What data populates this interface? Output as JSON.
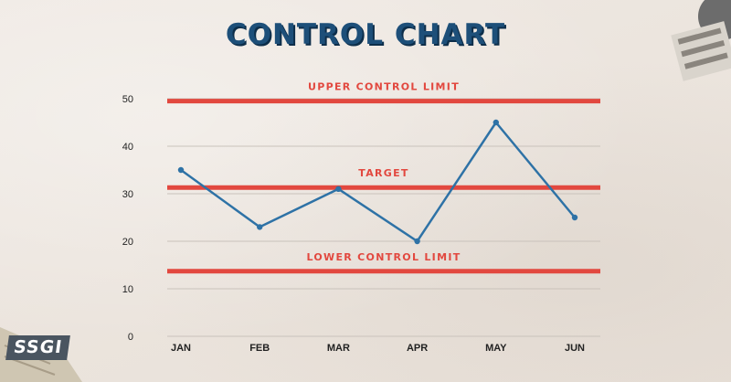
{
  "title": "CONTROL CHART",
  "logo": "SSGI",
  "colors": {
    "title": "#1d4f79",
    "line": "#2e72a6",
    "limit": "#e2483f",
    "grid": "#c9c2bb",
    "background": "#ece5de"
  },
  "chart_data": {
    "type": "line",
    "categories": [
      "JAN",
      "FEB",
      "MAR",
      "APR",
      "MAY",
      "JUN"
    ],
    "series": [
      {
        "values": [
          35,
          23,
          31,
          20,
          45,
          25
        ]
      }
    ],
    "reference_lines": [
      {
        "label": "UPPER CONTROL LIMIT",
        "value": 49.5
      },
      {
        "label": "TARGET",
        "value": 31.3
      },
      {
        "label": "LOWER CONTROL LIMIT",
        "value": 13.7
      }
    ],
    "yticks": [
      0,
      10,
      20,
      30,
      40,
      50
    ],
    "ylim": [
      0,
      50
    ],
    "grid": true,
    "xlabel": "",
    "ylabel": ""
  }
}
